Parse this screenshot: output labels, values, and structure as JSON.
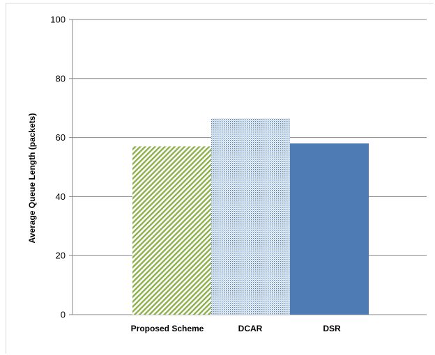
{
  "chart_data": {
    "type": "bar",
    "categories": [
      "Proposed Scheme",
      "DCAR",
      "DSR"
    ],
    "values": [
      57,
      66.5,
      58
    ],
    "title": "",
    "xlabel": "",
    "ylabel": "Average Queue Length (packets)",
    "ylim": [
      0,
      100
    ],
    "yticks": [
      0,
      20,
      40,
      60,
      80,
      100
    ],
    "grid": true,
    "bar_styles": [
      {
        "pattern": "diagonal-stripes",
        "color": "#8cb04a"
      },
      {
        "pattern": "dots",
        "color": "#4f81bd"
      },
      {
        "pattern": "solid",
        "color": "#4f7bb5"
      }
    ]
  }
}
